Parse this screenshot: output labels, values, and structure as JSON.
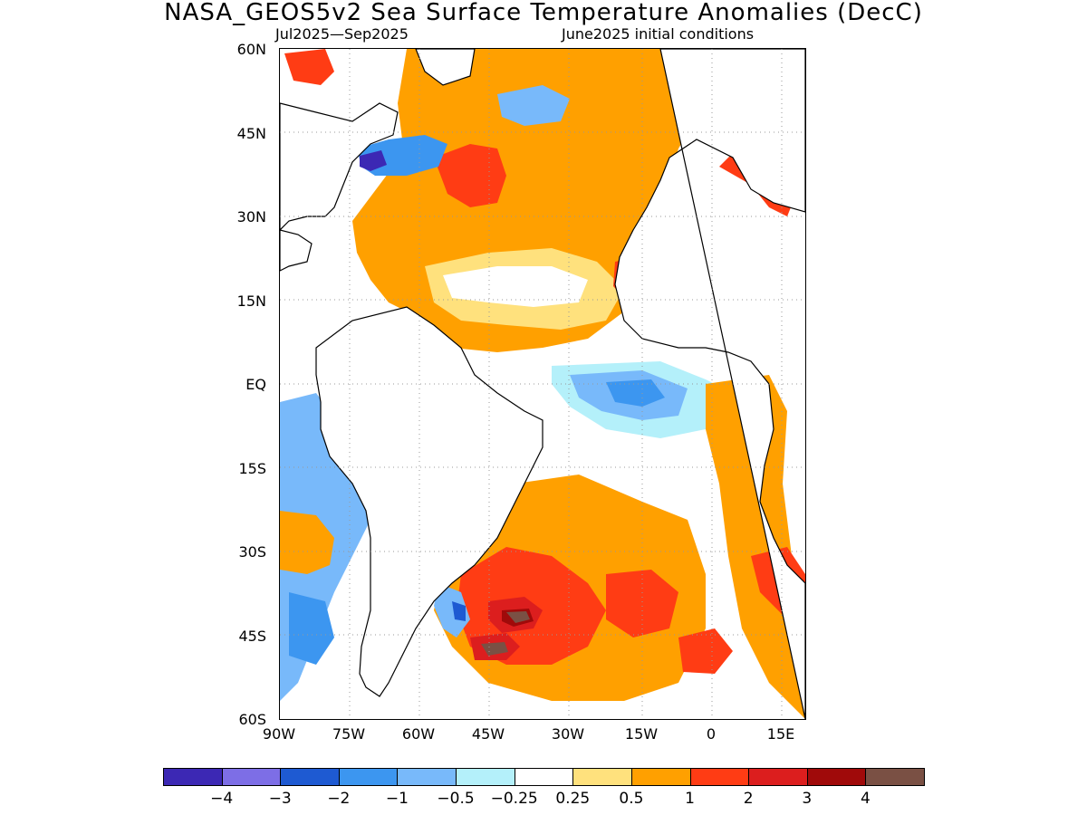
{
  "title": "NASA_GEOS5v2 Sea Surface Temperature Anomalies (DecC)",
  "subtitle_left": "Jul2025—Sep2025",
  "subtitle_right": "June2025 initial conditions",
  "lat_labels": [
    "60N",
    "45N",
    "30N",
    "15N",
    "EQ",
    "15S",
    "30S",
    "45S",
    "60S"
  ],
  "lon_labels": [
    "90W",
    "75W",
    "60W",
    "45W",
    "30W",
    "15W",
    "0",
    "15E"
  ],
  "colorbar": {
    "colors": [
      "#3c28b4",
      "#7d6ee6",
      "#1e5ad2",
      "#3c96f0",
      "#78b9fa",
      "#b4f0fa",
      "#ffffff",
      "#ffe17d",
      "#ffa000",
      "#ff3c14",
      "#dc1e1e",
      "#a00a0a",
      "#7a5044"
    ],
    "labels": [
      "−4",
      "−3",
      "−2",
      "−1",
      "−0.5",
      "−0.25",
      "0.25",
      "0.5",
      "1",
      "2",
      "3",
      "4"
    ]
  },
  "map": {
    "land_color": "#ffffff",
    "coastline_color": "#000000",
    "grid_color": "#999999"
  }
}
